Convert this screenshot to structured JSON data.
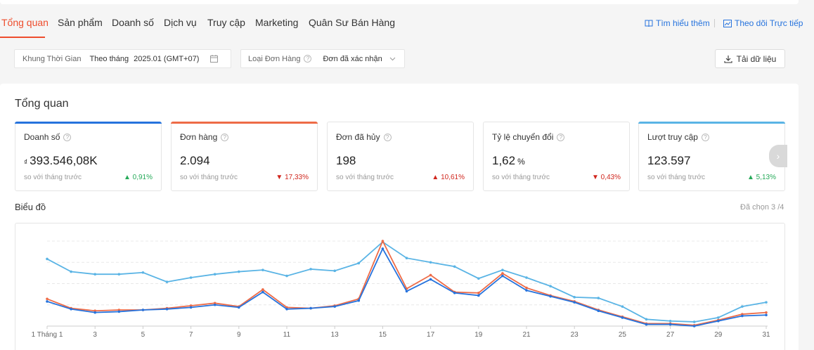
{
  "nav": {
    "tabs": [
      {
        "label": "Tổng quan",
        "active": true
      },
      {
        "label": "Sản phẩm"
      },
      {
        "label": "Doanh số"
      },
      {
        "label": "Dịch vụ"
      },
      {
        "label": "Truy cập"
      },
      {
        "label": "Marketing"
      },
      {
        "label": "Quân Sư Bán Hàng"
      }
    ],
    "learn_more": "Tìm hiểu thêm",
    "live_tracking": "Theo dõi Trực tiếp"
  },
  "filters": {
    "time_label": "Khung Thời Gian",
    "time_mode": "Theo tháng",
    "time_value": "2025.01 (GMT+07)",
    "order_type_label": "Loại Đơn Hàng",
    "order_type_value": "Đơn đã xác nhận",
    "download_label": "Tải dữ liệu"
  },
  "overview": {
    "title": "Tổng quan",
    "compare_text": "so với tháng trước",
    "cards": [
      {
        "name": "Doanh số",
        "currency": "₫",
        "value": "393.546,08K",
        "unit": "",
        "change": "0,91%",
        "direction": "up",
        "accent": "#2673dd"
      },
      {
        "name": "Đơn hàng",
        "currency": "",
        "value": "2.094",
        "unit": "",
        "change": "17,33%",
        "direction": "down",
        "accent": "#ee6b47"
      },
      {
        "name": "Đơn đã hủy",
        "currency": "",
        "value": "198",
        "unit": "",
        "change": "10,61%",
        "direction": "up",
        "accent": ""
      },
      {
        "name": "Tỷ lệ chuyển đổi",
        "currency": "",
        "value": "1,62",
        "unit": "%",
        "change": "0,43%",
        "direction": "down",
        "accent": ""
      },
      {
        "name": "Lượt truy cập",
        "currency": "",
        "value": "123.597",
        "unit": "",
        "change": "5,13%",
        "direction": "up",
        "accent": "#5ab4e5"
      }
    ]
  },
  "chart_section": {
    "title": "Biểu đồ",
    "selected_text": "Đã chọn 3 /4"
  },
  "chart_data": {
    "type": "line",
    "x": [
      1,
      2,
      3,
      4,
      5,
      6,
      7,
      8,
      9,
      10,
      11,
      12,
      13,
      14,
      15,
      16,
      17,
      18,
      19,
      20,
      21,
      22,
      23,
      24,
      25,
      26,
      27,
      28,
      29,
      30,
      31
    ],
    "tick_labels": [
      "1 Tháng 1",
      "3",
      "5",
      "7",
      "9",
      "11",
      "13",
      "15",
      "17",
      "19",
      "21",
      "23",
      "25",
      "27",
      "29",
      "31"
    ],
    "ylim": [
      0,
      100
    ],
    "series": [
      {
        "color": "#5ab4e5",
        "values": [
          79,
          64,
          61,
          61,
          63,
          52,
          57,
          61,
          64,
          66,
          59,
          67,
          65,
          74,
          99,
          80,
          75,
          70,
          56,
          66,
          57,
          47,
          34,
          33,
          23,
          8,
          6,
          5,
          10,
          23,
          28
        ]
      },
      {
        "color": "#ee6b47",
        "values": [
          32,
          21,
          18,
          19,
          19,
          21,
          24,
          27,
          23,
          43,
          22,
          21,
          24,
          32,
          100,
          44,
          60,
          40,
          39,
          62,
          45,
          36,
          29,
          19,
          11,
          3,
          3,
          1,
          7,
          14,
          16
        ]
      },
      {
        "color": "#2673dd",
        "values": [
          29,
          20,
          16,
          17,
          19,
          20,
          22,
          25,
          22,
          40,
          20,
          21,
          23,
          30,
          91,
          41,
          55,
          39,
          36,
          59,
          42,
          35,
          28,
          18,
          10,
          2,
          2,
          0,
          6,
          12,
          13
        ]
      }
    ]
  }
}
